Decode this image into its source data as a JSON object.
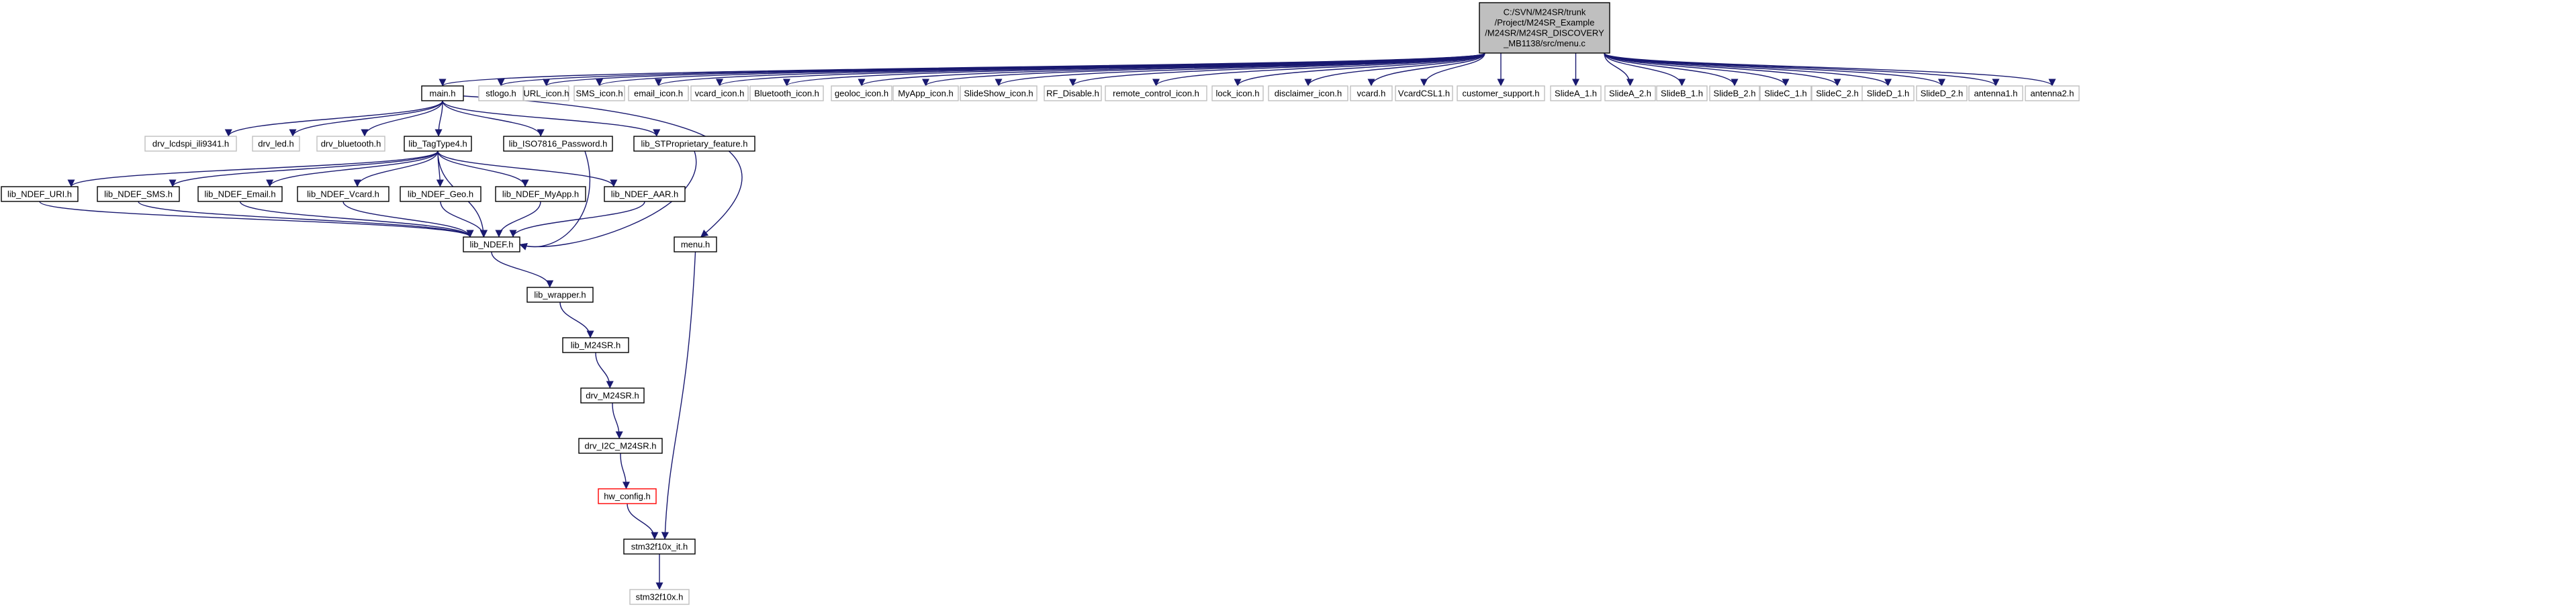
{
  "root": {
    "id": "root",
    "lines": [
      "C:/SVN/M24SR/trunk",
      "/Project/M24SR_Example",
      "/M24SR/M24SR_DISCOVERY",
      "_MB1138/src/menu.c"
    ]
  },
  "nodes": [
    {
      "id": "main_h",
      "label": "main.h",
      "style": "documented"
    },
    {
      "id": "stlogo_h",
      "label": "stlogo.h",
      "style": "external"
    },
    {
      "id": "url_icon_h",
      "label": "URL_icon.h",
      "style": "external"
    },
    {
      "id": "sms_icon_h",
      "label": "SMS_icon.h",
      "style": "external"
    },
    {
      "id": "email_icon_h",
      "label": "email_icon.h",
      "style": "external"
    },
    {
      "id": "vcard_icon_h",
      "label": "vcard_icon.h",
      "style": "external"
    },
    {
      "id": "bluetooth_icon_h",
      "label": "Bluetooth_icon.h",
      "style": "external"
    },
    {
      "id": "geoloc_icon_h",
      "label": "geoloc_icon.h",
      "style": "external"
    },
    {
      "id": "myapp_icon_h",
      "label": "MyApp_icon.h",
      "style": "external"
    },
    {
      "id": "slideshow_icon_h",
      "label": "SlideShow_icon.h",
      "style": "external"
    },
    {
      "id": "rf_disable_h",
      "label": "RF_Disable.h",
      "style": "external"
    },
    {
      "id": "remote_control_icon_h",
      "label": "remote_control_icon.h",
      "style": "external"
    },
    {
      "id": "lock_icon_h",
      "label": "lock_icon.h",
      "style": "external"
    },
    {
      "id": "disclaimer_icon_h",
      "label": "disclaimer_icon.h",
      "style": "external"
    },
    {
      "id": "vcard_h",
      "label": "vcard.h",
      "style": "external"
    },
    {
      "id": "vcardcsl1_h",
      "label": "VcardCSL1.h",
      "style": "external"
    },
    {
      "id": "customer_support_h",
      "label": "customer_support.h",
      "style": "external"
    },
    {
      "id": "slidea_1_h",
      "label": "SlideA_1.h",
      "style": "external"
    },
    {
      "id": "slidea_2_h",
      "label": "SlideA_2.h",
      "style": "external"
    },
    {
      "id": "slideb_1_h",
      "label": "SlideB_1.h",
      "style": "external"
    },
    {
      "id": "slideb_2_h",
      "label": "SlideB_2.h",
      "style": "external"
    },
    {
      "id": "slidec_1_h",
      "label": "SlideC_1.h",
      "style": "external"
    },
    {
      "id": "slidec_2_h",
      "label": "SlideC_2.h",
      "style": "external"
    },
    {
      "id": "slided_1_h",
      "label": "SlideD_1.h",
      "style": "external"
    },
    {
      "id": "slided_2_h",
      "label": "SlideD_2.h",
      "style": "external"
    },
    {
      "id": "antenna1_h",
      "label": "antenna1.h",
      "style": "external"
    },
    {
      "id": "antenna2_h",
      "label": "antenna2.h",
      "style": "external"
    },
    {
      "id": "drv_lcdspi_h",
      "label": "drv_lcdspi_ili9341.h",
      "style": "external"
    },
    {
      "id": "drv_led_h",
      "label": "drv_led.h",
      "style": "external"
    },
    {
      "id": "drv_bluetooth_h",
      "label": "drv_bluetooth.h",
      "style": "external"
    },
    {
      "id": "lib_tagtype4_h",
      "label": "lib_TagType4.h",
      "style": "documented"
    },
    {
      "id": "lib_iso7816_h",
      "label": "lib_ISO7816_Password.h",
      "style": "documented"
    },
    {
      "id": "lib_stproprietary_h",
      "label": "lib_STProprietary_feature.h",
      "style": "documented"
    },
    {
      "id": "lib_ndef_uri_h",
      "label": "lib_NDEF_URI.h",
      "style": "documented"
    },
    {
      "id": "lib_ndef_sms_h",
      "label": "lib_NDEF_SMS.h",
      "style": "documented"
    },
    {
      "id": "lib_ndef_email_h",
      "label": "lib_NDEF_Email.h",
      "style": "documented"
    },
    {
      "id": "lib_ndef_vcard_h",
      "label": "lib_NDEF_Vcard.h",
      "style": "documented"
    },
    {
      "id": "lib_ndef_geo_h",
      "label": "lib_NDEF_Geo.h",
      "style": "documented"
    },
    {
      "id": "lib_ndef_myapp_h",
      "label": "lib_NDEF_MyApp.h",
      "style": "documented"
    },
    {
      "id": "lib_ndef_aar_h",
      "label": "lib_NDEF_AAR.h",
      "style": "documented"
    },
    {
      "id": "lib_ndef_h",
      "label": "lib_NDEF.h",
      "style": "documented"
    },
    {
      "id": "menu_h",
      "label": "menu.h",
      "style": "documented"
    },
    {
      "id": "lib_wrapper_h",
      "label": "lib_wrapper.h",
      "style": "documented"
    },
    {
      "id": "lib_m24sr_h",
      "label": "lib_M24SR.h",
      "style": "documented"
    },
    {
      "id": "drv_m24sr_h",
      "label": "drv_M24SR.h",
      "style": "documented"
    },
    {
      "id": "drv_i2c_m24sr_h",
      "label": "drv_I2C_M24SR.h",
      "style": "documented"
    },
    {
      "id": "hw_config_h",
      "label": "hw_config.h",
      "style": "truncated"
    },
    {
      "id": "stm32f10x_it_h",
      "label": "stm32f10x_it.h",
      "style": "documented"
    },
    {
      "id": "stm32f10x_h",
      "label": "stm32f10x.h",
      "style": "external"
    }
  ],
  "edges": [
    [
      "root",
      "main_h"
    ],
    [
      "root",
      "stlogo_h"
    ],
    [
      "root",
      "url_icon_h"
    ],
    [
      "root",
      "sms_icon_h"
    ],
    [
      "root",
      "email_icon_h"
    ],
    [
      "root",
      "vcard_icon_h"
    ],
    [
      "root",
      "bluetooth_icon_h"
    ],
    [
      "root",
      "geoloc_icon_h"
    ],
    [
      "root",
      "myapp_icon_h"
    ],
    [
      "root",
      "slideshow_icon_h"
    ],
    [
      "root",
      "rf_disable_h"
    ],
    [
      "root",
      "remote_control_icon_h"
    ],
    [
      "root",
      "lock_icon_h"
    ],
    [
      "root",
      "disclaimer_icon_h"
    ],
    [
      "root",
      "vcard_h"
    ],
    [
      "root",
      "vcardcsl1_h"
    ],
    [
      "root",
      "customer_support_h"
    ],
    [
      "root",
      "slidea_1_h"
    ],
    [
      "root",
      "slidea_2_h"
    ],
    [
      "root",
      "slideb_1_h"
    ],
    [
      "root",
      "slideb_2_h"
    ],
    [
      "root",
      "slidec_1_h"
    ],
    [
      "root",
      "slidec_2_h"
    ],
    [
      "root",
      "slided_1_h"
    ],
    [
      "root",
      "slided_2_h"
    ],
    [
      "root",
      "antenna1_h"
    ],
    [
      "root",
      "antenna2_h"
    ],
    [
      "main_h",
      "drv_lcdspi_h"
    ],
    [
      "main_h",
      "drv_led_h"
    ],
    [
      "main_h",
      "drv_bluetooth_h"
    ],
    [
      "main_h",
      "lib_tagtype4_h"
    ],
    [
      "main_h",
      "lib_iso7816_h"
    ],
    [
      "main_h",
      "lib_stproprietary_h"
    ],
    [
      "main_h",
      "menu_h"
    ],
    [
      "lib_tagtype4_h",
      "lib_ndef_uri_h"
    ],
    [
      "lib_tagtype4_h",
      "lib_ndef_sms_h"
    ],
    [
      "lib_tagtype4_h",
      "lib_ndef_email_h"
    ],
    [
      "lib_tagtype4_h",
      "lib_ndef_vcard_h"
    ],
    [
      "lib_tagtype4_h",
      "lib_ndef_geo_h"
    ],
    [
      "lib_tagtype4_h",
      "lib_ndef_myapp_h"
    ],
    [
      "lib_tagtype4_h",
      "lib_ndef_aar_h"
    ],
    [
      "lib_tagtype4_h",
      "lib_ndef_h"
    ],
    [
      "lib_iso7816_h",
      "lib_ndef_h"
    ],
    [
      "lib_stproprietary_h",
      "lib_ndef_h"
    ],
    [
      "lib_ndef_uri_h",
      "lib_ndef_h"
    ],
    [
      "lib_ndef_sms_h",
      "lib_ndef_h"
    ],
    [
      "lib_ndef_email_h",
      "lib_ndef_h"
    ],
    [
      "lib_ndef_vcard_h",
      "lib_ndef_h"
    ],
    [
      "lib_ndef_geo_h",
      "lib_ndef_h"
    ],
    [
      "lib_ndef_myapp_h",
      "lib_ndef_h"
    ],
    [
      "lib_ndef_aar_h",
      "lib_ndef_h"
    ],
    [
      "lib_ndef_h",
      "lib_wrapper_h"
    ],
    [
      "lib_wrapper_h",
      "lib_m24sr_h"
    ],
    [
      "lib_m24sr_h",
      "drv_m24sr_h"
    ],
    [
      "drv_m24sr_h",
      "drv_i2c_m24sr_h"
    ],
    [
      "drv_i2c_m24sr_h",
      "hw_config_h"
    ],
    [
      "hw_config_h",
      "stm32f10x_it_h"
    ],
    [
      "menu_h",
      "stm32f10x_it_h"
    ],
    [
      "stm32f10x_it_h",
      "stm32f10x_h"
    ]
  ],
  "colors": {
    "edge": "#191970",
    "documented_border": "#000000",
    "documented_fill": "#ffffff",
    "external_border": "#bfbfbf",
    "truncated_border": "#ff0000",
    "root_fill": "#bfbfbf",
    "root_border": "#000000",
    "text": "#000000"
  }
}
